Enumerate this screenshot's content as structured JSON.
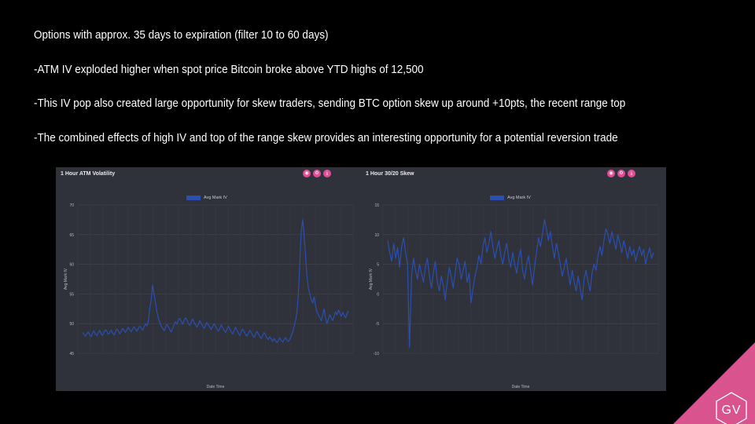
{
  "slide": {
    "bullets": [
      "Options with approx. 35 days to expiration (filter 10 to 60 days)",
      "-ATM IV exploded higher when spot price Bitcoin broke above YTD highs of 12,500",
      "-This IV pop also created large opportunity for skew traders, sending BTC option skew up around +10pts, the recent range top",
      "-The combined effects of high IV and top of the range skew provides an interesting opportunity for a potential reversion trade"
    ]
  },
  "colors": {
    "background": "#000000",
    "panel": "#30323b",
    "series": "#2a4fb0",
    "icon": "#e24c96",
    "brand": "#d9538f"
  },
  "charts": [
    {
      "title": "1 Hour ATM Volatility",
      "icons": [
        "camera-icon",
        "settings-icon",
        "download-icon"
      ],
      "legend": "Avg Mark IV",
      "xlabel": "Date Time",
      "ylabel": "Avg Mark IV"
    },
    {
      "title": "1 Hour 30/20 Skew",
      "icons": [
        "camera-icon",
        "settings-icon",
        "download-icon"
      ],
      "legend": "Avg Mark IV",
      "xlabel": "Date Time",
      "ylabel": "Avg Mark IV"
    }
  ],
  "chart_data": [
    {
      "type": "line",
      "title": "1 Hour ATM Volatility",
      "xlabel": "Date Time",
      "ylabel": "Avg Mark IV",
      "ylim": [
        45,
        70
      ],
      "yticks": [
        "70",
        "65",
        "60",
        "55",
        "50",
        "45"
      ],
      "grid": true,
      "legend_position": "top-center",
      "series": [
        {
          "name": "Avg Mark IV",
          "values": [
            48.5,
            48.2,
            47.9,
            48.3,
            48.6,
            48.1,
            47.8,
            48.4,
            48.8,
            48.2,
            48.0,
            48.5,
            48.9,
            48.3,
            48.0,
            48.6,
            49.0,
            48.7,
            48.2,
            48.5,
            48.9,
            48.4,
            48.1,
            48.6,
            49.1,
            48.8,
            48.3,
            48.7,
            49.2,
            48.9,
            48.5,
            49.0,
            49.4,
            49.0,
            48.6,
            49.1,
            49.5,
            49.1,
            48.7,
            49.2,
            49.6,
            49.3,
            48.9,
            49.4,
            50.0,
            49.6,
            50.4,
            52.5,
            54.0,
            56.5,
            55.0,
            53.5,
            52.0,
            51.0,
            50.2,
            49.6,
            49.2,
            48.8,
            49.3,
            49.9,
            49.5,
            49.0,
            48.6,
            49.2,
            49.8,
            50.3,
            49.9,
            50.6,
            50.9,
            50.4,
            49.9,
            50.5,
            51.0,
            50.6,
            50.1,
            49.7,
            50.2,
            50.8,
            50.3,
            49.8,
            49.4,
            49.9,
            50.5,
            50.0,
            49.6,
            49.2,
            49.7,
            50.2,
            49.8,
            49.4,
            49.0,
            49.5,
            50.0,
            49.6,
            49.1,
            48.7,
            49.2,
            49.8,
            49.3,
            48.9,
            48.5,
            49.0,
            49.6,
            49.1,
            48.6,
            48.3,
            48.8,
            49.4,
            48.9,
            48.4,
            48.0,
            48.6,
            49.1,
            48.7,
            48.2,
            47.9,
            48.4,
            48.9,
            48.5,
            48.0,
            47.7,
            48.2,
            48.7,
            48.3,
            47.8,
            47.5,
            48.0,
            48.5,
            48.1,
            47.6,
            47.3,
            47.8,
            47.4,
            47.0,
            47.5,
            47.1,
            46.8,
            47.2,
            47.6,
            47.1,
            46.9,
            47.3,
            47.7,
            47.2,
            47.0,
            47.4,
            47.9,
            48.5,
            49.5,
            50.5,
            52.0,
            55.0,
            60.0,
            65.5,
            67.5,
            65.0,
            61.5,
            58.0,
            56.0,
            55.0,
            54.0,
            53.5,
            54.5,
            53.0,
            52.0,
            51.5,
            51.0,
            50.5,
            51.5,
            52.5,
            51.0,
            50.0,
            50.8,
            51.5,
            51.0,
            50.5,
            51.2,
            52.0,
            51.5,
            52.3,
            51.8,
            51.2,
            51.9,
            51.4,
            51.0,
            51.6,
            52.2
          ]
        }
      ]
    },
    {
      "type": "line",
      "title": "1 Hour 30/20 Skew",
      "xlabel": "Date Time",
      "ylabel": "Avg Mark IV",
      "ylim": [
        -10,
        15
      ],
      "yticks": [
        "15",
        "10",
        "5",
        "0",
        "-5",
        "-10"
      ],
      "grid": true,
      "legend_position": "top-center",
      "series": [
        {
          "name": "Avg Mark IV",
          "values": [
            9.0,
            7.0,
            5.5,
            8.5,
            6.0,
            7.8,
            4.5,
            8.0,
            9.5,
            7.0,
            5.0,
            -9.0,
            3.0,
            6.0,
            4.0,
            2.5,
            5.0,
            3.5,
            2.0,
            4.5,
            6.0,
            3.0,
            1.0,
            3.5,
            5.5,
            2.0,
            0.5,
            3.0,
            1.5,
            -1.0,
            2.0,
            4.5,
            3.0,
            1.0,
            3.5,
            6.0,
            5.0,
            2.5,
            4.0,
            5.5,
            2.0,
            3.5,
            -1.5,
            1.0,
            3.0,
            4.5,
            6.5,
            5.0,
            8.0,
            9.5,
            7.0,
            8.5,
            10.5,
            8.0,
            6.0,
            7.5,
            9.0,
            6.5,
            5.0,
            7.0,
            8.5,
            6.0,
            4.5,
            7.0,
            5.0,
            3.5,
            6.0,
            7.5,
            4.0,
            2.5,
            5.0,
            6.5,
            4.0,
            1.5,
            4.5,
            7.0,
            9.5,
            8.0,
            10.0,
            12.5,
            11.0,
            9.0,
            10.5,
            8.0,
            6.0,
            8.5,
            7.0,
            5.0,
            3.0,
            4.5,
            6.0,
            3.5,
            1.5,
            4.0,
            2.0,
            0.5,
            3.0,
            1.0,
            -1.0,
            2.5,
            4.0,
            2.0,
            0.5,
            3.5,
            5.0,
            4.0,
            6.5,
            8.0,
            6.5,
            9.0,
            11.0,
            10.0,
            8.5,
            10.5,
            9.0,
            7.5,
            10.0,
            8.5,
            7.0,
            9.0,
            7.5,
            6.0,
            8.0,
            6.5,
            7.5,
            5.5,
            7.0,
            8.0,
            6.5,
            7.5,
            5.0,
            6.5,
            7.8,
            6.0,
            7.0
          ]
        }
      ]
    }
  ]
}
